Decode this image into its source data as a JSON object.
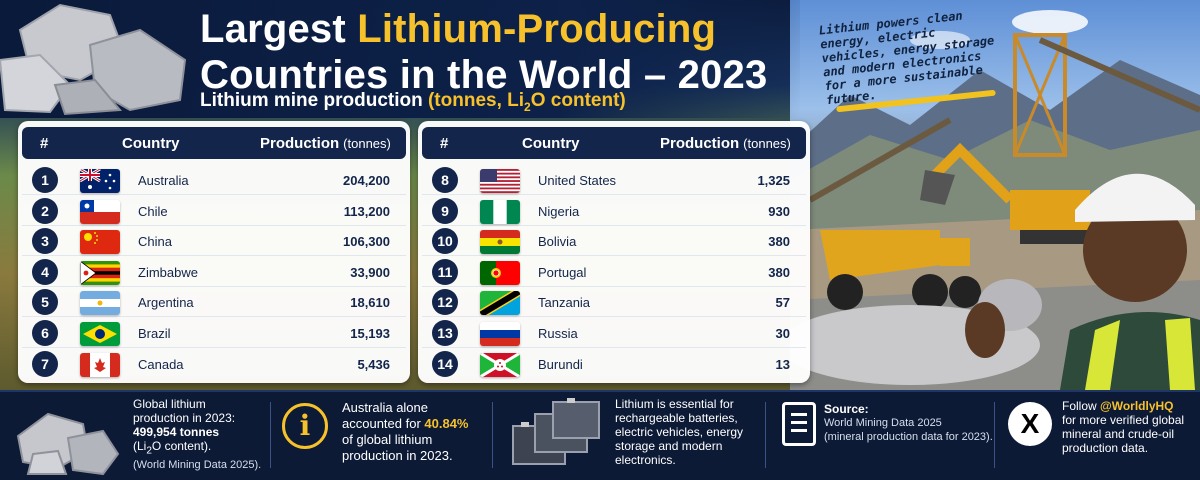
{
  "header": {
    "title_part1": "Largest ",
    "title_highlight": "Lithium-Producing",
    "title_line2": "Countries in the World – 2023",
    "subtitle_plain": "Lithium mine production ",
    "subtitle_hl_1": "(tonnes, Li",
    "subtitle_sub": "2",
    "subtitle_hl_2": "O content)"
  },
  "note": {
    "text": "Lithium powers clean energy, electric vehicles, energy storage and modern electronics for a more sustainable future."
  },
  "table_headers": {
    "num": "#",
    "country": "Country",
    "production": "Production",
    "unit": "(tonnes)"
  },
  "left_rows": [
    {
      "rank": "1",
      "country": "Australia",
      "value": "204,200",
      "flag": "australia"
    },
    {
      "rank": "2",
      "country": "Chile",
      "value": "113,200",
      "flag": "chile"
    },
    {
      "rank": "3",
      "country": "China",
      "value": "106,300",
      "flag": "china"
    },
    {
      "rank": "4",
      "country": "Zimbabwe",
      "value": "33,900",
      "flag": "zimbabwe"
    },
    {
      "rank": "5",
      "country": "Argentina",
      "value": "18,610",
      "flag": "argentina"
    },
    {
      "rank": "6",
      "country": "Brazil",
      "value": "15,193",
      "flag": "brazil"
    },
    {
      "rank": "7",
      "country": "Canada",
      "value": "5,436",
      "flag": "canada"
    }
  ],
  "right_rows": [
    {
      "rank": "8",
      "country": "United States",
      "value": "1,325",
      "flag": "usa"
    },
    {
      "rank": "9",
      "country": "Nigeria",
      "value": "930",
      "flag": "nigeria"
    },
    {
      "rank": "10",
      "country": "Bolivia",
      "value": "380",
      "flag": "bolivia"
    },
    {
      "rank": "11",
      "country": "Portugal",
      "value": "380",
      "flag": "portugal"
    },
    {
      "rank": "12",
      "country": "Tanzania",
      "value": "57",
      "flag": "tanzania"
    },
    {
      "rank": "13",
      "country": "Russia",
      "value": "30",
      "flag": "russia"
    },
    {
      "rank": "14",
      "country": "Burundi",
      "value": "13",
      "flag": "burundi"
    }
  ],
  "footer": {
    "global_l1": "Global lithium",
    "global_l2": "production in 2023:",
    "global_value": "499,954 tonnes",
    "global_l4a": "(Li",
    "global_l4sub": "2",
    "global_l4b": "O content).",
    "global_l5": "(World Mining Data 2025).",
    "aus_l1": "Australia alone",
    "aus_l2a": "accounted for ",
    "aus_pct": "40.84%",
    "aus_l3": "of global lithium",
    "aus_l4": "production in 2023.",
    "use_l1": "Lithium is essential for",
    "use_l2": "rechargeable batteries,",
    "use_l3": "electric vehicles, energy",
    "use_l4": "storage and modern",
    "use_l5": "electronics.",
    "source_label": "Source:",
    "source_l1": "World Mining Data 2025",
    "source_l2": "(mineral production data for 2023).",
    "follow_a": "Follow ",
    "follow_handle": "@WorldlyHQ",
    "follow_l2": "for more verified global",
    "follow_l3": "mineral and crude-oil",
    "follow_l4": "production data."
  }
}
